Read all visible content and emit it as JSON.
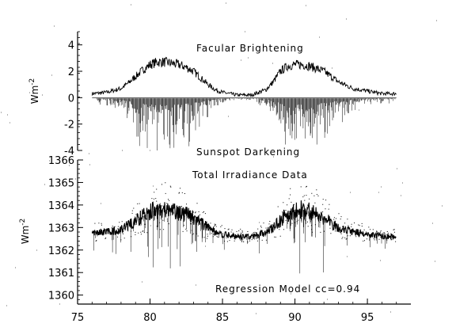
{
  "chart_data": [
    {
      "type": "line",
      "panel": "top",
      "ylabel": "Wm",
      "ylabel_exponent": "-2",
      "xlim": [
        75,
        98
      ],
      "ylim": [
        -4,
        5
      ],
      "yticks": [
        -4,
        -2,
        0,
        2,
        4
      ],
      "ytick_labels": [
        "-4",
        "-2",
        "0",
        "2",
        "4"
      ],
      "annotations": {
        "upper": "Facular Brightening",
        "lower": "Sunspot Darkening"
      },
      "series": [
        {
          "role": "facular",
          "x": [
            76,
            77,
            78,
            78.5,
            79,
            79.5,
            80,
            80.5,
            81,
            81.5,
            82,
            82.5,
            83,
            83.5,
            84,
            84.5,
            85,
            86,
            87,
            88,
            88.5,
            89,
            89.5,
            90,
            90.5,
            91,
            91.5,
            92,
            92.5,
            93,
            94,
            95,
            96,
            97
          ],
          "values": [
            0.3,
            0.4,
            0.7,
            1.1,
            1.6,
            2.1,
            2.5,
            2.7,
            2.7,
            2.6,
            2.5,
            2.3,
            2.0,
            1.5,
            1.0,
            0.6,
            0.4,
            0.2,
            0.2,
            0.6,
            1.2,
            2.0,
            2.4,
            2.5,
            2.5,
            2.4,
            2.2,
            2.0,
            1.6,
            1.2,
            0.7,
            0.5,
            0.3,
            0.3
          ]
        },
        {
          "role": "sunspot",
          "x": [
            76,
            77,
            78,
            78.5,
            79,
            79.5,
            80,
            80.5,
            81,
            81.5,
            82,
            82.5,
            83,
            83.5,
            84,
            84.5,
            85,
            86,
            87,
            88,
            88.5,
            89,
            89.5,
            90,
            90.5,
            91,
            91.5,
            92,
            92.5,
            93,
            94,
            95,
            96,
            97
          ],
          "values": [
            -0.2,
            -0.3,
            -0.6,
            -1.0,
            -1.5,
            -1.8,
            -2.0,
            -2.1,
            -2.2,
            -2.2,
            -2.0,
            -1.8,
            -1.6,
            -1.1,
            -0.7,
            -0.4,
            -0.2,
            -0.1,
            -0.1,
            -0.4,
            -1.0,
            -1.6,
            -1.9,
            -2.0,
            -2.0,
            -2.0,
            -1.8,
            -1.6,
            -1.3,
            -0.9,
            -0.5,
            -0.3,
            -0.2,
            -0.2
          ]
        }
      ]
    },
    {
      "type": "scatter",
      "panel": "bottom",
      "ylabel": "Wm",
      "ylabel_exponent": "-2",
      "xlim": [
        75,
        98
      ],
      "ylim": [
        1359.6,
        1366
      ],
      "xticks": [
        75,
        80,
        85,
        90,
        95
      ],
      "xtick_labels": [
        "75",
        "80",
        "85",
        "90",
        "95"
      ],
      "yticks": [
        1360,
        1361,
        1362,
        1363,
        1364,
        1365,
        1366
      ],
      "ytick_labels": [
        "1360",
        "1361",
        "1362",
        "1363",
        "1364",
        "1365",
        "1366"
      ],
      "annotations": {
        "upper": "Total Irradiance Data",
        "lower": "Regression Model cc=0.94"
      },
      "series": [
        {
          "role": "total irradiance",
          "x": [
            76,
            77,
            78,
            78.5,
            79,
            79.5,
            80,
            80.5,
            81,
            81.5,
            82,
            82.5,
            83,
            83.5,
            84,
            84.5,
            85,
            86,
            87,
            88,
            88.5,
            89,
            89.5,
            90,
            90.5,
            91,
            91.5,
            92,
            92.5,
            93,
            94,
            95,
            96,
            97
          ],
          "values": [
            1362.75,
            1362.8,
            1362.9,
            1363.1,
            1363.3,
            1363.5,
            1363.7,
            1363.8,
            1363.8,
            1363.7,
            1363.7,
            1363.6,
            1363.4,
            1363.2,
            1363.0,
            1362.8,
            1362.7,
            1362.6,
            1362.6,
            1362.8,
            1363.0,
            1363.3,
            1363.6,
            1363.8,
            1363.8,
            1363.7,
            1363.6,
            1363.4,
            1363.2,
            1363.0,
            1362.8,
            1362.7,
            1362.6,
            1362.6
          ]
        }
      ]
    }
  ]
}
